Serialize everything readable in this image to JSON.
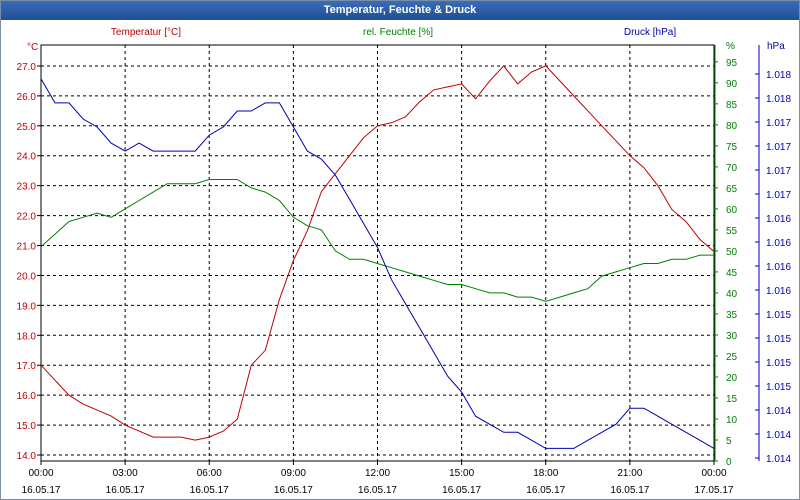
{
  "window": {
    "title": "Temperatur, Feuchte & Druck"
  },
  "colors": {
    "temperature": "#c00000",
    "humidity": "#008000",
    "pressure": "#0000b0",
    "grid": "#000000"
  },
  "chart_data": {
    "type": "line",
    "title": "Temperatur, Feuchte & Druck",
    "legend": [
      "Temperatur [°C]",
      "rel. Feuchte [%]",
      "Druck [hPa]"
    ],
    "axes": {
      "left": {
        "unit": "°C",
        "range": [
          13.8,
          27.7
        ],
        "ticks": [
          "14.0",
          "15.0",
          "16.0",
          "17.0",
          "18.0",
          "19.0",
          "20.0",
          "21.0",
          "22.0",
          "23.0",
          "24.0",
          "25.0",
          "26.0",
          "27.0"
        ]
      },
      "right1": {
        "unit": "%",
        "range": [
          0,
          99
        ],
        "ticks": [
          "0",
          "5",
          "10",
          "15",
          "20",
          "25",
          "30",
          "35",
          "40",
          "45",
          "50",
          "55",
          "60",
          "65",
          "70",
          "75",
          "80",
          "85",
          "90",
          "95"
        ]
      },
      "right2": {
        "unit": "hPa",
        "ticks": [
          "1.014",
          "1.014",
          "1.014",
          "1.015",
          "1.015",
          "1.015",
          "1.015",
          "1.016",
          "1.016",
          "1.016",
          "1.016",
          "1.017",
          "1.017",
          "1.017",
          "1.017",
          "1.018",
          "1.018"
        ]
      },
      "x": {
        "ticks": [
          {
            "time": "00:00",
            "date": "16.05.17"
          },
          {
            "time": "03:00",
            "date": "16.05.17"
          },
          {
            "time": "06:00",
            "date": "16.05.17"
          },
          {
            "time": "09:00",
            "date": "16.05.17"
          },
          {
            "time": "12:00",
            "date": "16.05.17"
          },
          {
            "time": "15:00",
            "date": "16.05.17"
          },
          {
            "time": "18:00",
            "date": "16.05.17"
          },
          {
            "time": "21:00",
            "date": "16.05.17"
          },
          {
            "time": "00:00",
            "date": "17.05.17"
          }
        ],
        "range_hours": [
          0,
          24
        ]
      }
    },
    "grid": true,
    "series": [
      {
        "name": "Temperatur [°C]",
        "axis": "left",
        "x": [
          0,
          0.5,
          1,
          1.5,
          2,
          2.5,
          3,
          3.5,
          4,
          4.5,
          5,
          5.5,
          6,
          6.5,
          7,
          7.5,
          8,
          8.5,
          9,
          9.5,
          10,
          10.5,
          11,
          11.5,
          12,
          12.5,
          13,
          13.5,
          14,
          14.5,
          15,
          15.5,
          16,
          16.5,
          17,
          17.5,
          18,
          18.5,
          19,
          19.5,
          20,
          20.5,
          21,
          21.5,
          22,
          22.5,
          23,
          23.5,
          24
        ],
        "y": [
          17.0,
          16.5,
          16.0,
          15.7,
          15.5,
          15.3,
          15.0,
          14.8,
          14.6,
          14.6,
          14.6,
          14.5,
          14.6,
          14.8,
          15.2,
          17.0,
          17.5,
          19.2,
          20.5,
          21.5,
          22.8,
          23.4,
          24.0,
          24.6,
          25.0,
          25.1,
          25.3,
          25.8,
          26.2,
          26.3,
          26.4,
          25.9,
          26.5,
          27.0,
          26.4,
          26.8,
          27.0,
          26.5,
          26.0,
          25.5,
          25.0,
          24.5,
          24.0,
          23.6,
          23.0,
          22.2,
          21.8,
          21.2,
          20.8
        ]
      },
      {
        "name": "rel. Feuchte [%]",
        "axis": "right1",
        "x": [
          0,
          0.5,
          1,
          1.5,
          2,
          2.5,
          3,
          3.5,
          4,
          4.5,
          5,
          5.5,
          6,
          6.5,
          7,
          7.5,
          8,
          8.5,
          9,
          9.5,
          10,
          10.5,
          11,
          11.5,
          12,
          12.5,
          13,
          13.5,
          14,
          14.5,
          15,
          15.5,
          16,
          16.5,
          17,
          17.5,
          18,
          18.5,
          19,
          19.5,
          20,
          20.5,
          21,
          21.5,
          22,
          22.5,
          23,
          23.5,
          24
        ],
        "y": [
          51,
          54,
          57,
          58,
          59,
          58,
          60,
          62,
          64,
          66,
          66,
          66,
          67,
          67,
          67,
          65,
          64,
          62,
          58,
          56,
          55,
          50,
          48,
          48,
          47,
          46,
          45,
          44,
          43,
          42,
          42,
          41,
          40,
          40,
          39,
          39,
          38,
          39,
          40,
          41,
          44,
          45,
          46,
          47,
          47,
          48,
          48,
          49,
          49
        ]
      },
      {
        "name": "Druck [hPa]",
        "axis": "right2",
        "x": [
          0,
          0.5,
          1,
          1.5,
          2,
          2.5,
          3,
          3.5,
          4,
          4.5,
          5,
          5.5,
          6,
          6.5,
          7,
          7.5,
          8,
          8.5,
          9,
          9.5,
          10,
          10.5,
          11,
          11.5,
          12,
          12.5,
          13,
          13.5,
          14,
          14.5,
          15,
          15.5,
          16,
          16.5,
          17,
          17.5,
          18,
          18.5,
          19,
          19.5,
          20,
          20.5,
          21,
          21.5,
          22,
          22.5,
          23,
          23.5,
          24
        ],
        "y": [
          1.0186,
          1.0183,
          1.0183,
          1.0181,
          1.018,
          1.0178,
          1.0177,
          1.0178,
          1.0177,
          1.0177,
          1.0177,
          1.0177,
          1.0179,
          1.018,
          1.0182,
          1.0182,
          1.0183,
          1.0183,
          1.018,
          1.0177,
          1.0176,
          1.0174,
          1.0171,
          1.0168,
          1.0165,
          1.0161,
          1.0158,
          1.0155,
          1.0152,
          1.0149,
          1.0147,
          1.0144,
          1.0143,
          1.0142,
          1.0142,
          1.0141,
          1.014,
          1.014,
          1.014,
          1.0141,
          1.0142,
          1.0143,
          1.0145,
          1.0145,
          1.0144,
          1.0143,
          1.0142,
          1.0141,
          1.014
        ]
      }
    ]
  }
}
